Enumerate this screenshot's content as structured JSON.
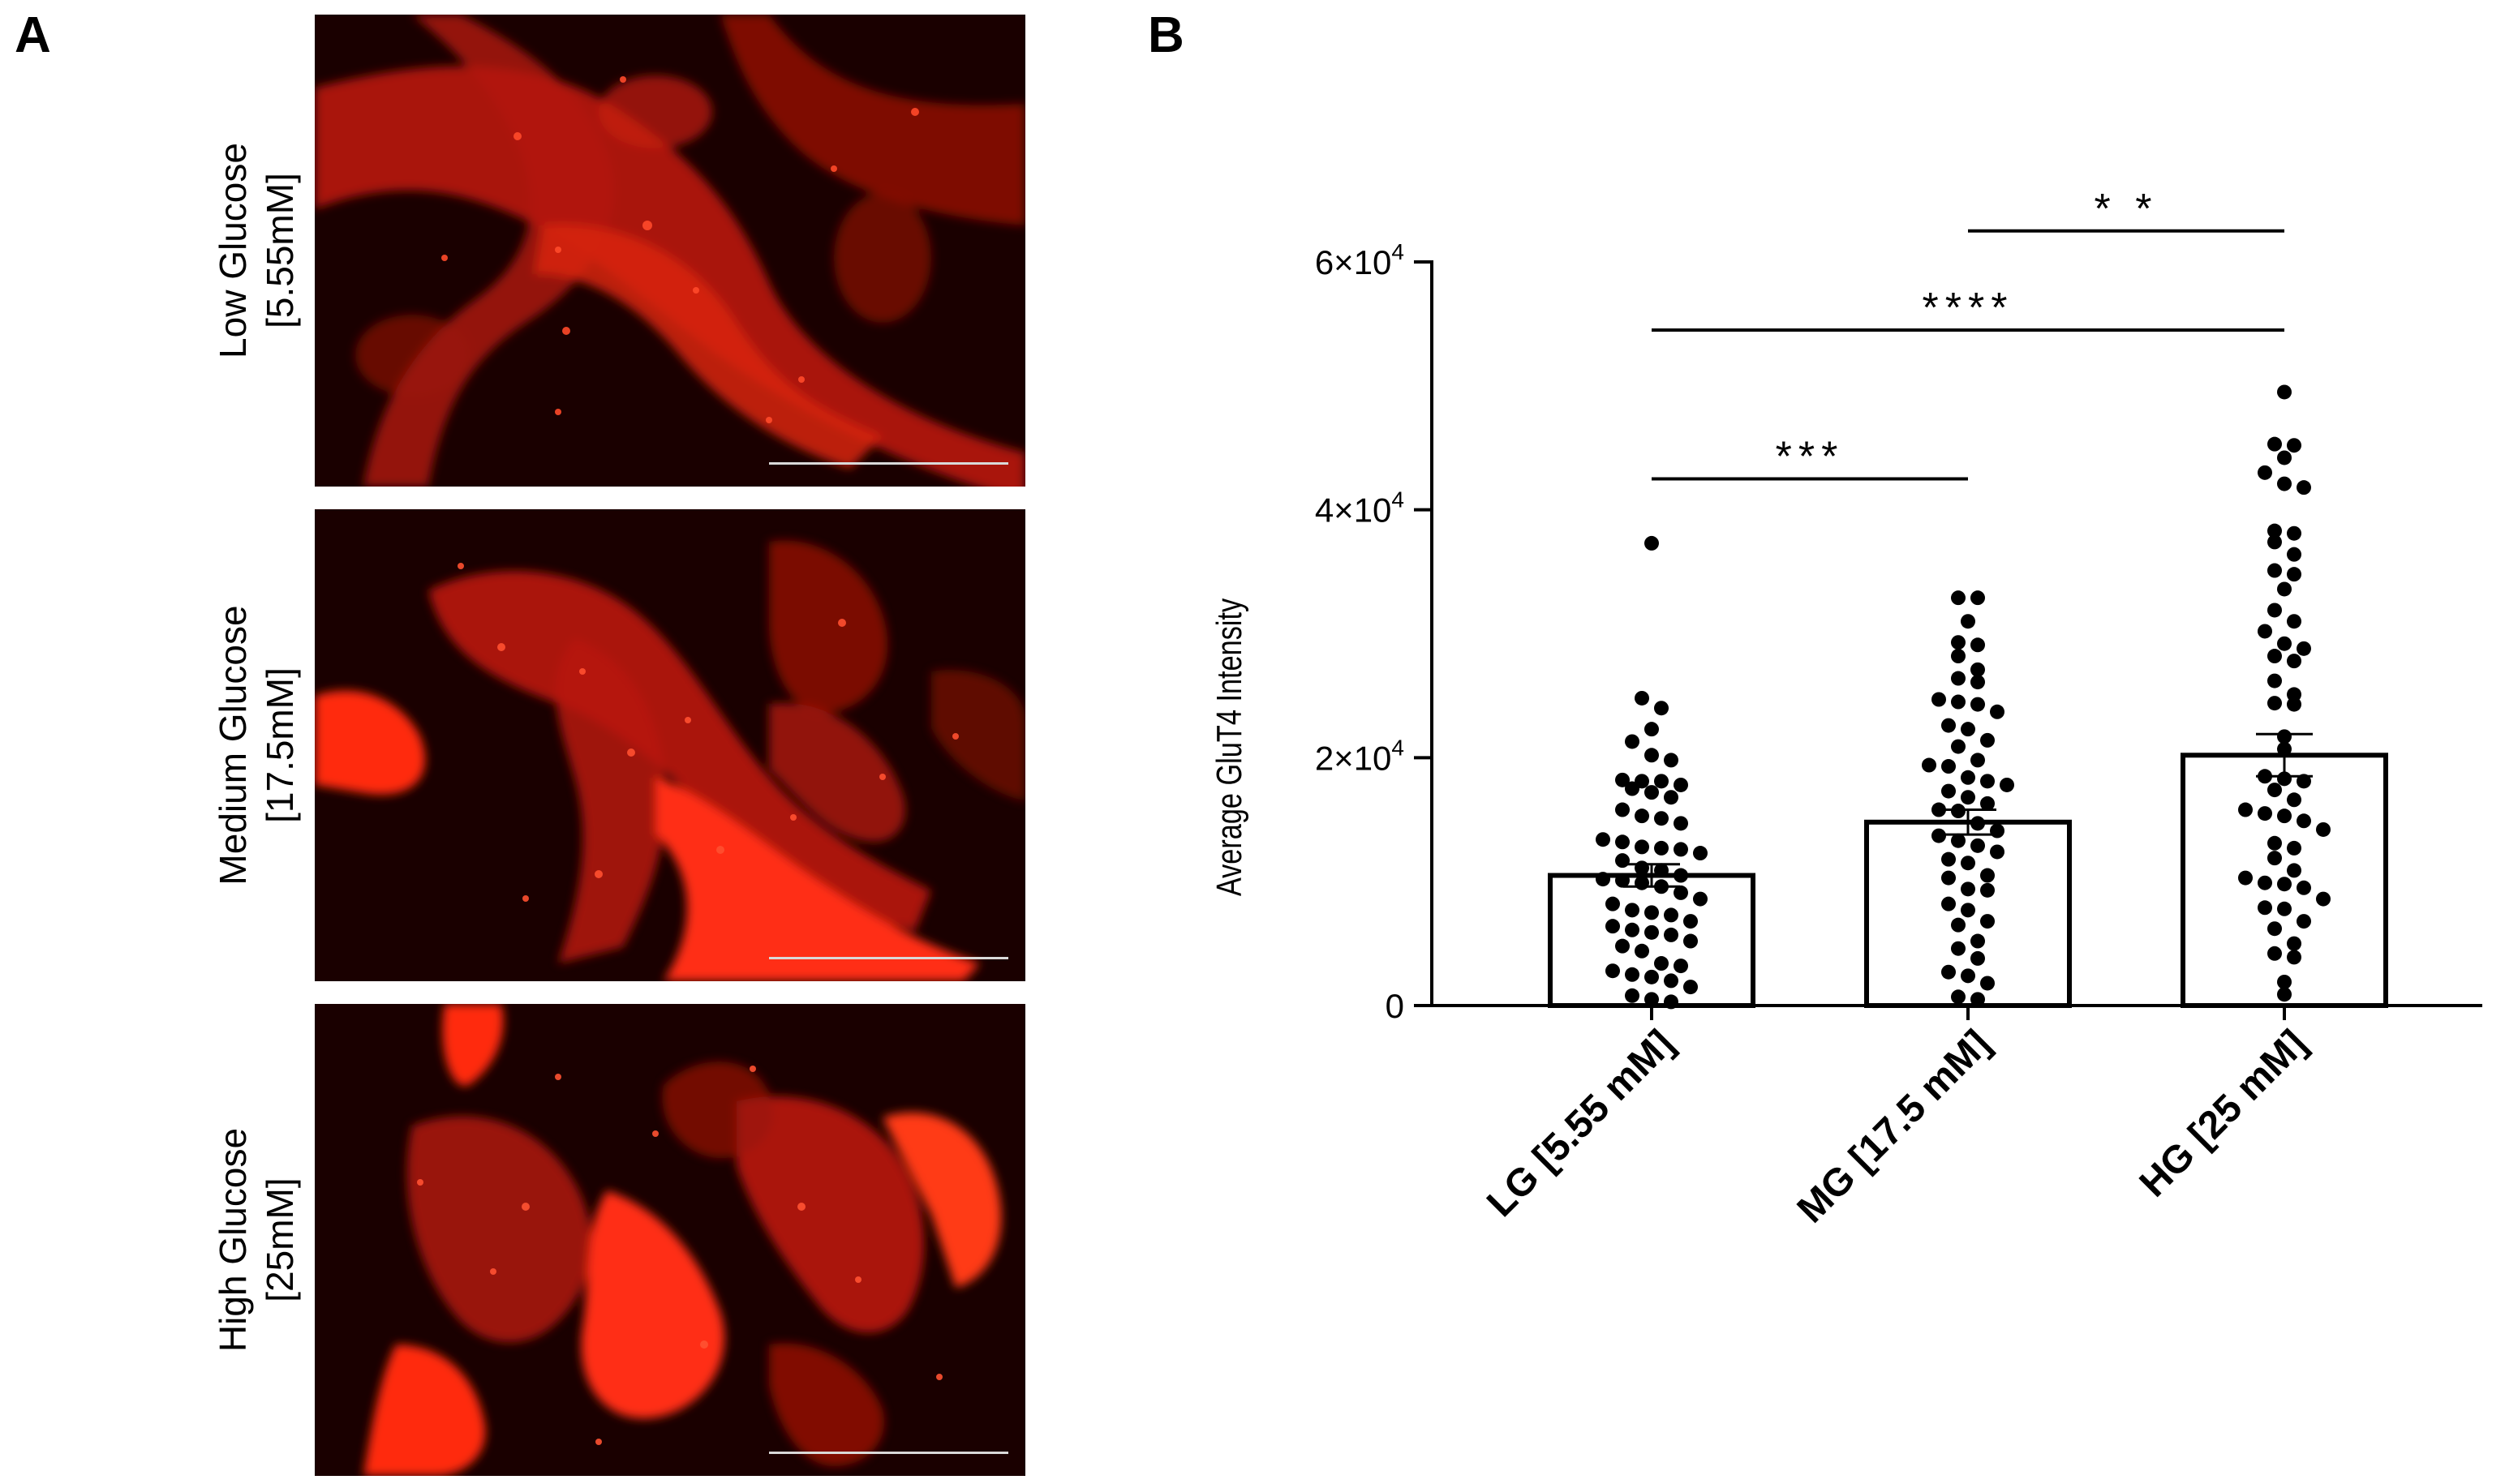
{
  "panel_a": {
    "letter": "A",
    "rows": [
      {
        "line1": "Low Glucose",
        "line2": "[5.55mM]"
      },
      {
        "line1": "Medium Glucose",
        "line2": "[17.5mM]"
      },
      {
        "line1": "High Glucose",
        "line2": "[25mM]"
      }
    ]
  },
  "panel_b": {
    "letter": "B"
  },
  "chart_data": {
    "type": "bar",
    "title": "",
    "ylabel": "Average GluT4 Intensity",
    "xlabel": "",
    "categories": [
      "LG [5.55 mM]",
      "MG [17.5 mM]",
      "HG [25 mM]"
    ],
    "ylim": [
      0,
      60000
    ],
    "yticks": [
      0,
      20000,
      40000,
      60000
    ],
    "ytick_labels": [
      {
        "mantissa": "0",
        "exponent": ""
      },
      {
        "mantissa": "2×10",
        "exponent": "4"
      },
      {
        "mantissa": "4×10",
        "exponent": "4"
      },
      {
        "mantissa": "6×10",
        "exponent": "4"
      }
    ],
    "means": [
      10500,
      14800,
      20200
    ],
    "sem": [
      900,
      1000,
      1700
    ],
    "bar_fill": "#ffffff",
    "point_color": "#000000",
    "points": [
      [
        37300,
        24800,
        24000,
        22300,
        21300,
        20200,
        19800,
        18200,
        18100,
        18100,
        17800,
        17500,
        17200,
        16800,
        15800,
        15300,
        15100,
        14700,
        13400,
        13200,
        12800,
        12700,
        12600,
        12300,
        11700,
        11100,
        10900,
        10500,
        10200,
        10100,
        9900,
        9600,
        9100,
        8600,
        8200,
        7700,
        7500,
        7300,
        6800,
        6400,
        6100,
        5900,
        5700,
        5200,
        4800,
        4400,
        3400,
        3200,
        2800,
        2500,
        2300,
        2000,
        1500,
        800,
        500,
        300
      ],
      [
        32900,
        32900,
        31000,
        29300,
        29100,
        28200,
        27100,
        26400,
        26100,
        24700,
        24500,
        24300,
        23700,
        22600,
        22300,
        21400,
        20900,
        19800,
        19400,
        19300,
        18400,
        18100,
        17800,
        17300,
        16800,
        16300,
        15800,
        15700,
        14700,
        14100,
        13700,
        13300,
        12900,
        12400,
        11800,
        11500,
        10500,
        10300,
        9400,
        9300,
        8200,
        7700,
        6800,
        6500,
        5200,
        4600,
        3800,
        2700,
        2400,
        1800,
        700,
        500
      ],
      [
        49500,
        45300,
        45200,
        44200,
        43000,
        42100,
        41800,
        38300,
        38100,
        37400,
        36400,
        35100,
        34800,
        33600,
        31900,
        31000,
        30200,
        29200,
        28800,
        28200,
        27800,
        26200,
        25100,
        24400,
        24300,
        21700,
        20700,
        18500,
        18300,
        18100,
        17400,
        16600,
        15800,
        15500,
        15300,
        14900,
        14200,
        13100,
        12700,
        11900,
        10900,
        10300,
        9900,
        9800,
        9500,
        8600,
        7900,
        7800,
        6800,
        6200,
        5000,
        4200,
        3900,
        1900,
        900
      ]
    ],
    "significance": [
      {
        "from": 0,
        "to": 1,
        "label": "***",
        "y": 42500
      },
      {
        "from": 0,
        "to": 2,
        "label": "****",
        "y": 54500
      },
      {
        "from": 1,
        "to": 2,
        "label": "* *",
        "y": 62500
      }
    ],
    "legend": "none",
    "grid": false
  }
}
